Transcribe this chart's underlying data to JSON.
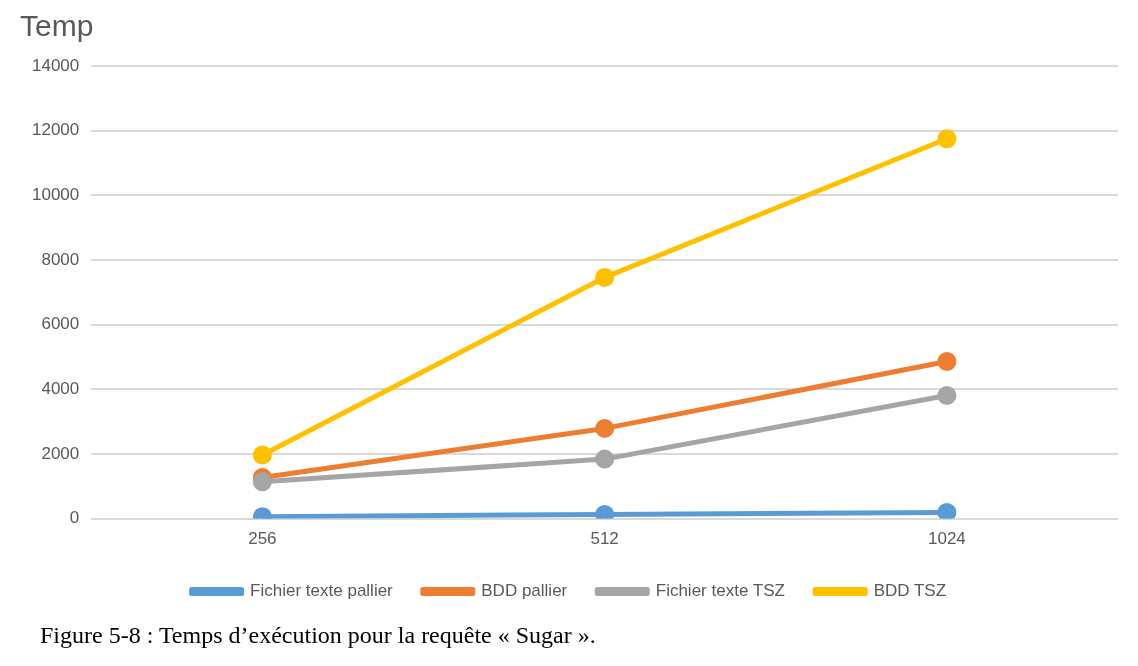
{
  "chart_data": {
    "type": "line",
    "title": "Temp",
    "categories": [
      "256",
      "512",
      "1024"
    ],
    "series": [
      {
        "name": "Fichier texte pallier",
        "color": "#5b9bd5",
        "values": [
          60,
          130,
          190
        ]
      },
      {
        "name": "BDD pallier",
        "color": "#ed7d31",
        "values": [
          1270,
          2790,
          4860
        ]
      },
      {
        "name": "Fichier texte TSZ",
        "color": "#a5a5a5",
        "values": [
          1140,
          1840,
          3810
        ]
      },
      {
        "name": "BDD TSZ",
        "color": "#ffc000",
        "values": [
          1970,
          7460,
          11750
        ]
      }
    ],
    "ylim": [
      0,
      14000
    ],
    "yticks": [
      0,
      2000,
      4000,
      6000,
      8000,
      10000,
      12000,
      14000
    ],
    "grid": "y",
    "legend": "bottom",
    "marker": "circle",
    "line_style": "solid",
    "annotations": [
      "Figure 5-8 : Temps d’exécution pour la requête « Sugar »."
    ]
  }
}
